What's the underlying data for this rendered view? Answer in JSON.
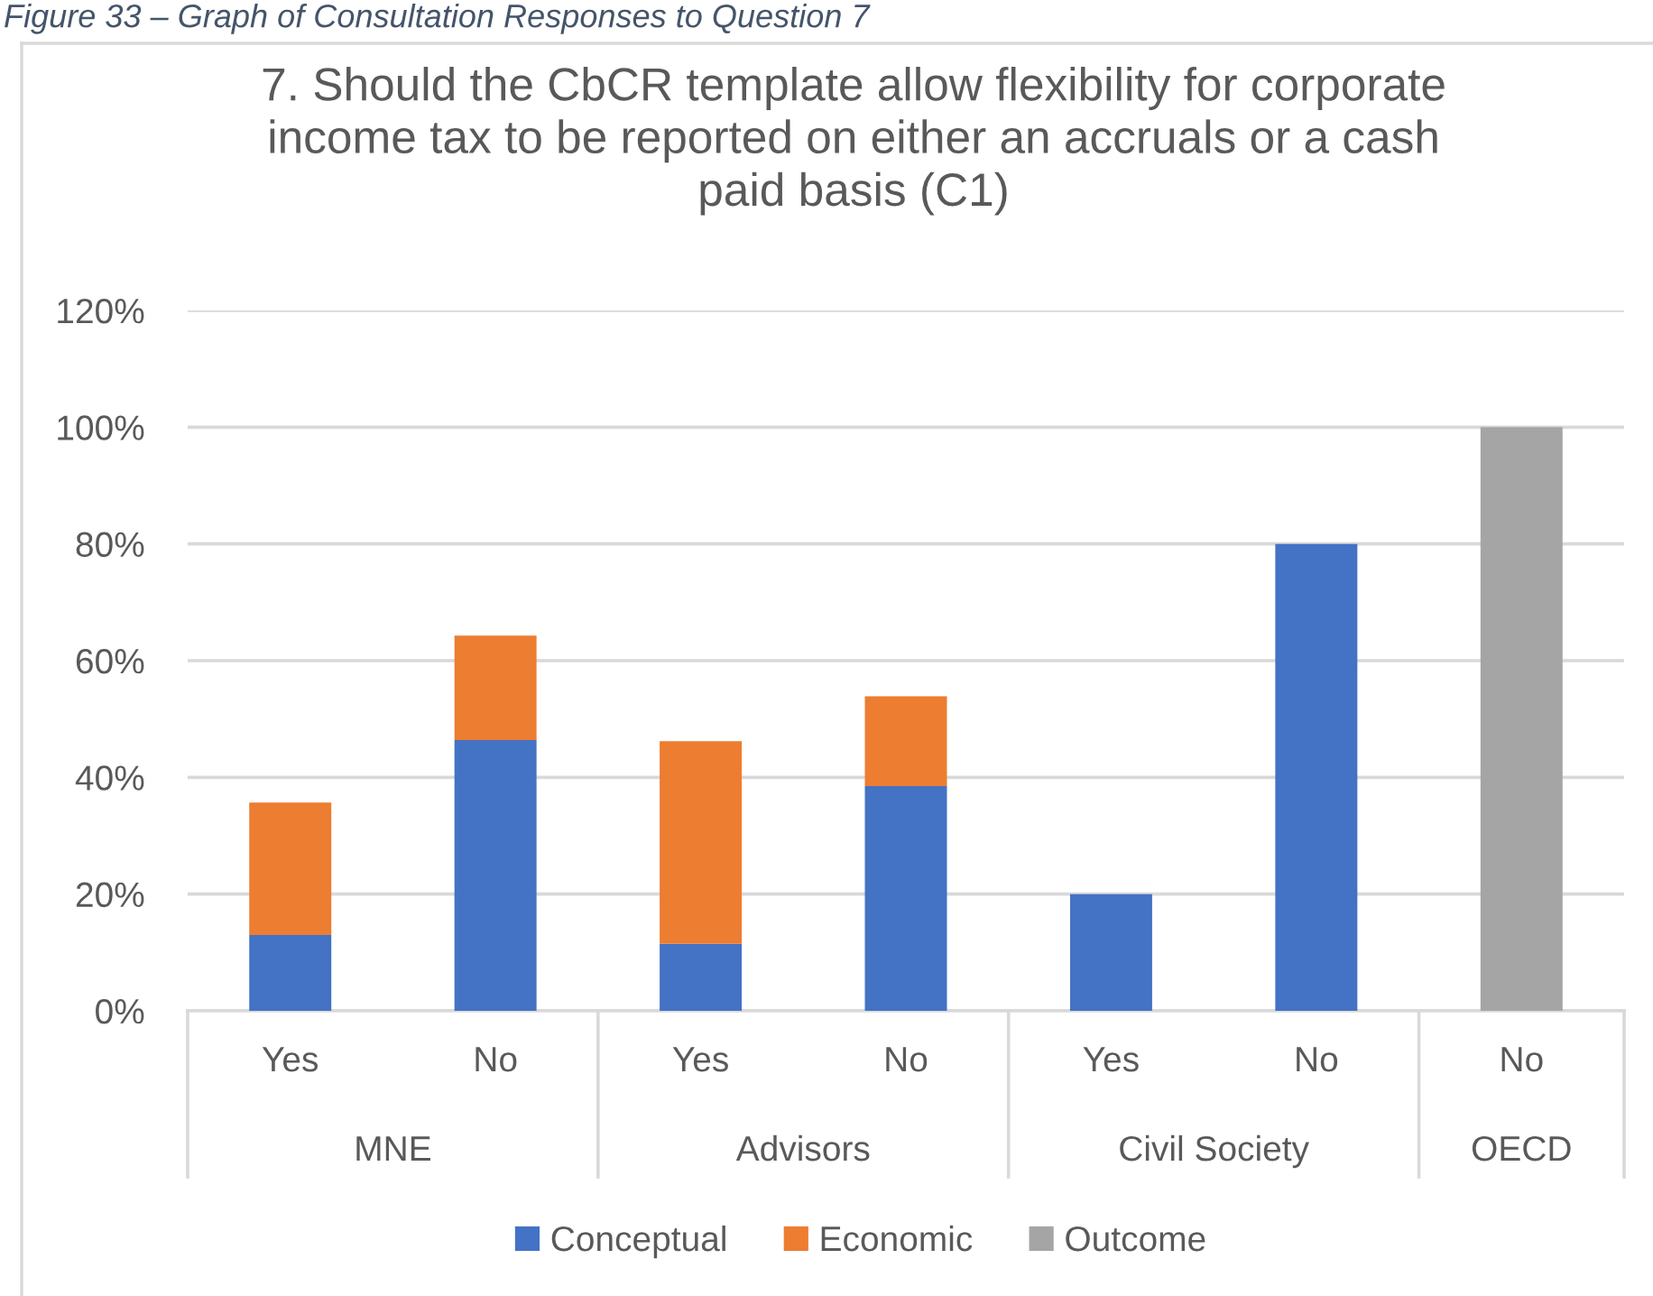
{
  "chart_data": {
    "type": "bar",
    "title": "7. Should the CbCR template allow flexibility for corporate\nincome tax to be reported on either an accruals or a cash\npaid basis (C1)",
    "annotations": [
      "Figure 33 – Graph of Consultation Responses to Question 7",
      "MNE",
      "Advisors",
      "Civil Society",
      "OECD"
    ],
    "categories": [
      "Yes",
      "No",
      "Yes",
      "No",
      "Yes",
      "No",
      "No"
    ],
    "series": [
      {
        "name": "Conceptual",
        "color": "#4472c4",
        "values": [
          13,
          46.4,
          11.5,
          38.5,
          20,
          80,
          null
        ]
      },
      {
        "name": "Economic",
        "color": "#ed7d31",
        "values": [
          22.7,
          17.9,
          34.7,
          15.4,
          null,
          null,
          null
        ]
      },
      {
        "name": "Outcome",
        "color": "#a5a5a5",
        "values": [
          null,
          null,
          null,
          null,
          null,
          null,
          100
        ]
      }
    ],
    "stacked": true,
    "ylim": [
      0,
      120
    ],
    "yticks": [
      {
        "value": 0,
        "label": "0%"
      },
      {
        "value": 20,
        "label": "20%"
      },
      {
        "value": 40,
        "label": "40%"
      },
      {
        "value": 60,
        "label": "60%"
      },
      {
        "value": 80,
        "label": "80%"
      },
      {
        "value": 100,
        "label": "100%"
      },
      {
        "value": 120,
        "label": "120%"
      }
    ],
    "grid": "y",
    "legend": "bottom"
  }
}
